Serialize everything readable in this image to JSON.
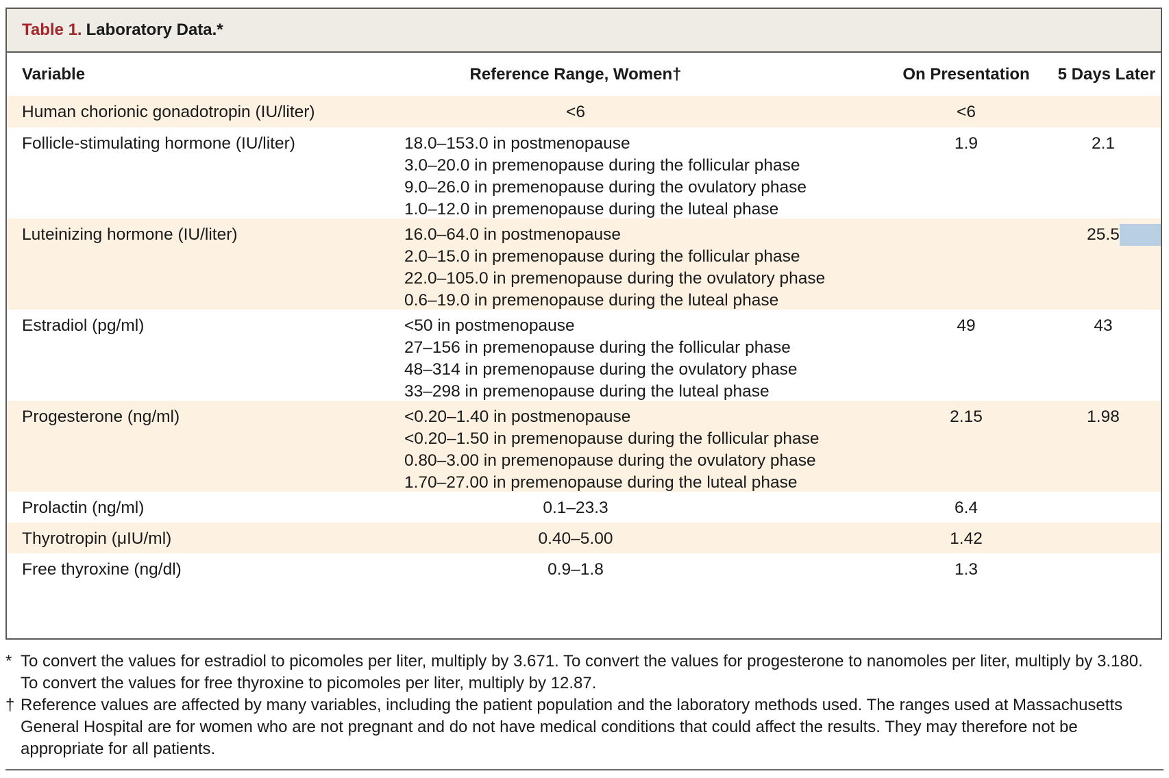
{
  "table": {
    "number": "Table 1.",
    "name": "Laboratory Data.*",
    "headers": {
      "variable": "Variable",
      "reference": "Reference Range, Women†",
      "presentation": "On Presentation",
      "later": "5 Days Later"
    },
    "rows": [
      {
        "variable": "Human chorionic gonadotropin (IU/liter)",
        "reference": [
          "<6"
        ],
        "presentation": "<6",
        "later": ""
      },
      {
        "variable": "Follicle-stimulating hormone (IU/liter)",
        "reference": [
          "18.0–153.0 in postmenopause",
          "3.0–20.0 in premenopause during the follicular phase",
          "9.0–26.0 in premenopause during the ovulatory phase",
          "1.0–12.0 in premenopause during the luteal phase"
        ],
        "presentation": "1.9",
        "later": "2.1"
      },
      {
        "variable": "Luteinizing hormone (IU/liter)",
        "reference": [
          "16.0–64.0 in postmenopause",
          "2.0–15.0 in premenopause during the follicular phase",
          "22.0–105.0 in premenopause during the ovulatory phase",
          "0.6–19.0 in premenopause during the luteal phase"
        ],
        "presentation": "",
        "later": "25.5"
      },
      {
        "variable": "Estradiol (pg/ml)",
        "reference": [
          "<50 in postmenopause",
          "27–156 in premenopause during the follicular phase",
          "48–314 in premenopause during the ovulatory phase",
          "33–298 in premenopause during the luteal phase"
        ],
        "presentation": "49",
        "later": "43"
      },
      {
        "variable": "Progesterone (ng/ml)",
        "reference": [
          "<0.20–1.40 in postmenopause",
          "<0.20–1.50 in premenopause during the follicular phase",
          "0.80–3.00 in premenopause during the ovulatory phase",
          "1.70–27.00 in premenopause during the luteal phase"
        ],
        "presentation": "2.15",
        "later": "1.98"
      },
      {
        "variable": "Prolactin (ng/ml)",
        "reference": [
          "0.1–23.3"
        ],
        "presentation": "6.4",
        "later": ""
      },
      {
        "variable": "Thyrotropin (μIU/ml)",
        "reference": [
          "0.40–5.00"
        ],
        "presentation": "1.42",
        "later": ""
      },
      {
        "variable": "Free thyroxine (ng/dl)",
        "reference": [
          "0.9–1.8"
        ],
        "presentation": "1.3",
        "later": ""
      }
    ]
  },
  "footnotes": [
    {
      "mark": "*",
      "text": "To convert the values for estradiol to picomoles per liter, multiply by 3.671. To convert the values for progesterone to nanomoles per liter, multiply by 3.180. To convert the values for free thyroxine to picomoles per liter, multiply by 12.87."
    },
    {
      "mark": "†",
      "text": "Reference values are affected by many variables, including the patient population and the laboratory methods used. The ranges used at Massachusetts General Hospital are for women who are not pregnant and do not have medical conditions that could affect the results. They may therefore not be appropriate for all patients."
    }
  ],
  "colors": {
    "title_number": "#a3262c",
    "title_bar_bg": "#efece6",
    "shaded_row_bg": "#fdf2e2",
    "highlight": "#b9cfe4"
  }
}
